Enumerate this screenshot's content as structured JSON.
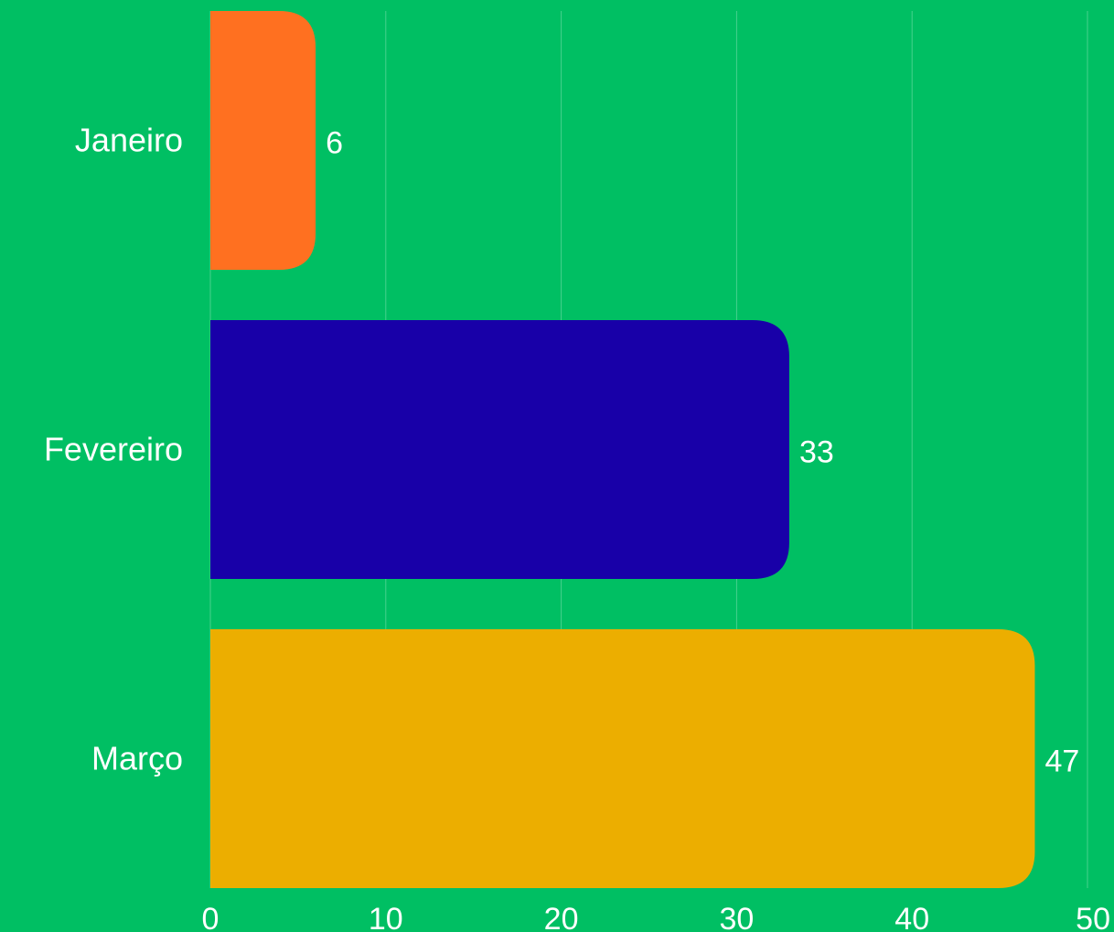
{
  "chart_data": {
    "type": "bar",
    "orientation": "horizontal",
    "categories": [
      "Janeiro",
      "Fevereiro",
      "Março"
    ],
    "values": [
      6,
      33,
      47
    ],
    "value_labels": [
      "6",
      "33",
      "47"
    ],
    "bar_colors": [
      "#ff7020",
      "#1800a8",
      "#ecae00"
    ],
    "xlim": [
      0,
      50
    ],
    "xticks": [
      0,
      10,
      20,
      30,
      40,
      50
    ],
    "xtick_labels": [
      "0",
      "10",
      "20",
      "30",
      "40",
      "50"
    ],
    "grid": true,
    "legend": false,
    "title": "",
    "xlabel": "",
    "ylabel": ""
  },
  "colors": {
    "background": "#00bf63",
    "text": "#ffffff",
    "grid": "#ffffff"
  }
}
